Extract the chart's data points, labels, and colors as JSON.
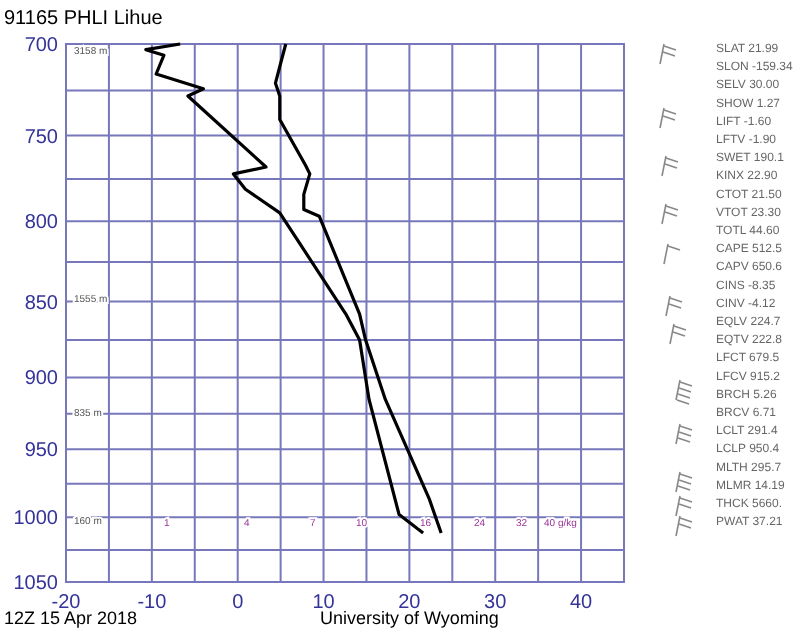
{
  "chart_data": {
    "type": "line",
    "title": "91165 PHLI Lihue",
    "log": "y",
    "grid": true,
    "xlim": [
      -20,
      45
    ],
    "xticks": [
      -20,
      {
        "value": -15,
        "label": null
      },
      -10,
      {
        "value": -5,
        "label": null
      },
      0,
      {
        "value": 5,
        "label": null
      },
      10,
      {
        "value": 15,
        "label": null
      },
      20,
      {
        "value": 25,
        "label": null
      },
      30,
      {
        "value": 35,
        "label": null
      },
      40
    ],
    "ylim": [
      1050,
      700
    ],
    "yticks": [
      700,
      {
        "value": 725,
        "label": null
      },
      750,
      {
        "value": 775,
        "label": null
      },
      800,
      {
        "value": 825,
        "label": null
      },
      850,
      {
        "value": 875,
        "label": null
      },
      900,
      {
        "value": 925,
        "label": null
      },
      950,
      {
        "value": 975,
        "label": null
      },
      1000,
      {
        "value": 1025,
        "label": null
      },
      1050
    ],
    "series": [
      {
        "color": "#000000",
        "x": [
          23.7,
          22.3,
          17.2,
          14.9,
          14.2,
          9.5,
          7.7,
          7.7,
          8.4,
          7.9,
          4.9,
          4.9,
          4.4,
          4.9,
          5.6
        ],
        "values": [
          1012,
          986,
          915,
          875,
          858,
          797,
          793,
          784,
          772,
          767,
          741,
          728,
          721,
          712,
          700
        ]
      },
      {
        "color": "#000000",
        "x": [
          21.6,
          18.8,
          15.3,
          14.2,
          12.6,
          4.9,
          0.9,
          -0.5,
          3.3,
          -5.8,
          -4.0,
          -9.5,
          -8.6,
          -10.7,
          -6.7
        ],
        "values": [
          1012,
          998,
          915,
          875,
          858,
          795,
          781,
          772,
          768,
          728,
          724,
          716,
          706,
          703,
          700
        ]
      }
    ],
    "annotations": [
      "12Z 15 Apr 2018",
      "University of Wyoming",
      "3158 m",
      "1555 m",
      "835 m",
      "160 m",
      "1",
      "4",
      "7",
      "10",
      "16",
      "24",
      "32",
      "40 g/kg",
      "SLAT 21.99",
      "SLON -159.34",
      "SELV 30.00",
      "SHOW 1.27",
      "LIFT -1.60",
      "LFTV -1.90",
      "SWET 190.1",
      "KINX 22.90",
      "CTOT 21.50",
      "VTOT 23.30",
      "TOTL 44.60",
      "CAPE 512.5",
      "CAPV 650.6",
      "CINS -8.35",
      "CINV -4.12",
      "EQLV 224.7",
      "EQTV 222.8",
      "LFCT 679.5",
      "LFCV 915.2",
      "BRCH 5.26",
      "BRCV 6.71",
      "LCLT 291.4",
      "LCLP 950.4",
      "MLTH 295.7",
      "MLMR 14.19",
      "THCK 5660.",
      "PWAT 37.21"
    ]
  }
}
